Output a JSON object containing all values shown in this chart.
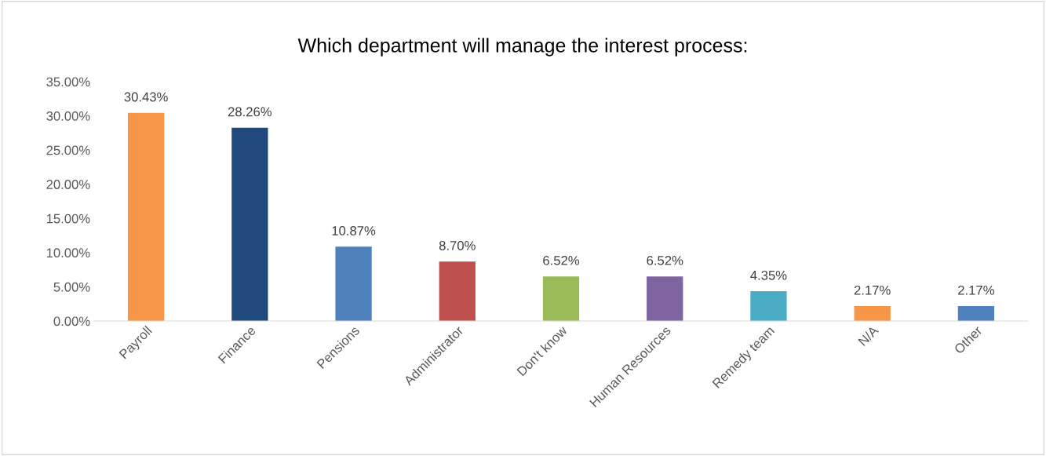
{
  "chart_data": {
    "type": "bar",
    "title": "Which department will manage the interest process:",
    "categories": [
      "Payroll",
      "Finance",
      "Pensions",
      "Administrator",
      "Don't know",
      "Human Resources",
      "Remedy team",
      "N/A",
      "Other"
    ],
    "values": [
      30.43,
      28.26,
      10.87,
      8.7,
      6.52,
      6.52,
      4.35,
      2.17,
      2.17
    ],
    "colors": [
      "#f79646",
      "#1f497d",
      "#4f81bd",
      "#c0504d",
      "#9bbb59",
      "#8064a2",
      "#4bacc6",
      "#f79646",
      "#4f81bd"
    ],
    "value_labels": [
      "30.43%",
      "28.26%",
      "10.87%",
      "8.70%",
      "6.52%",
      "6.52%",
      "4.35%",
      "2.17%",
      "2.17%"
    ],
    "ylim": [
      0,
      35
    ],
    "yticks": [
      {
        "value": 0,
        "label": "0.00%"
      },
      {
        "value": 5,
        "label": "5.00%"
      },
      {
        "value": 10,
        "label": "10.00%"
      },
      {
        "value": 15,
        "label": "15.00%"
      },
      {
        "value": 20,
        "label": "20.00%"
      },
      {
        "value": 25,
        "label": "25.00%"
      },
      {
        "value": 30,
        "label": "30.00%"
      },
      {
        "value": 35,
        "label": "35.00%"
      }
    ],
    "grid": false,
    "legend": false
  }
}
